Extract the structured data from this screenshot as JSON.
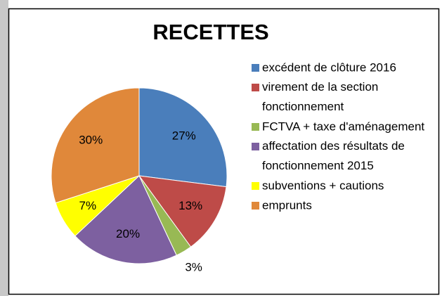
{
  "chart_data": {
    "type": "pie",
    "title": "RECETTES",
    "categories": [
      "excédent de clôture 2016",
      "virement de la section fonctionnement",
      "FCTVA + taxe d'aménagement",
      "affectation des résultats de fonctionnement 2015",
      "subventions + cautions",
      "emprunts"
    ],
    "values": [
      27,
      13,
      3,
      20,
      7,
      30
    ],
    "value_labels": [
      "27%",
      "13%",
      "3%",
      "20%",
      "7%",
      "30%"
    ],
    "colors": [
      "#4a7ebb",
      "#be4b48",
      "#98b954",
      "#7d60a0",
      "#ffff00",
      "#e0883a"
    ],
    "legend": "right"
  }
}
